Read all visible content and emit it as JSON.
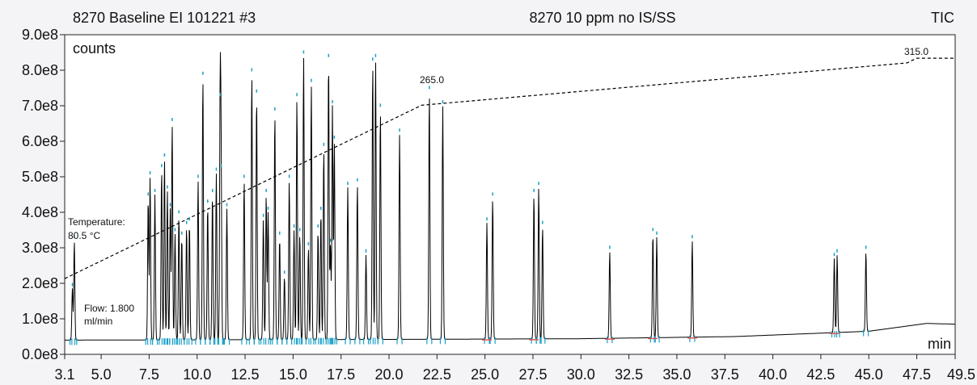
{
  "header": {
    "left_title": "8270 Baseline EI 101221 #3",
    "center_title": "8270 10 ppm no IS/SS",
    "right_title": "TIC"
  },
  "chart_data": {
    "type": "line",
    "ylabel": "counts",
    "xlabel": "min",
    "xlim": [
      3.1,
      49.5
    ],
    "ylim": [
      0,
      900000000
    ],
    "x_tick_labels": [
      "3.1",
      "5.0",
      "7.5",
      "10.0",
      "12.5",
      "15.0",
      "17.5",
      "20.0",
      "22.5",
      "25.0",
      "27.5",
      "30.0",
      "32.5",
      "35.0",
      "37.5",
      "40.0",
      "42.5",
      "45.0",
      "47.5",
      "49.5"
    ],
    "y_tick_labels": [
      "0.0e8",
      "1.0e8",
      "2.0e8",
      "3.0e8",
      "4.0e8",
      "5.0e8",
      "6.0e8",
      "7.0e8",
      "8.0e8",
      "9.0e8"
    ],
    "grid": false,
    "annotations": {
      "temperature_label": "Temperature:",
      "temperature_value": "80.5 °C",
      "flow_label": "Flow: 1.800",
      "flow_unit": "ml/min",
      "temp_mark_1": "265.0",
      "temp_mark_2": "315.0"
    },
    "colors": {
      "trace": "#000000",
      "peak_marker": "#1aa0c8",
      "temperature_program": "#000000",
      "baseline_marker": "#e05050"
    },
    "baseline": [
      [
        3.1,
        40000000
      ],
      [
        20,
        42000000
      ],
      [
        30,
        44000000
      ],
      [
        38,
        50000000
      ],
      [
        45,
        65000000
      ],
      [
        48,
        87000000
      ],
      [
        49.5,
        85000000
      ]
    ],
    "peaks": [
      {
        "rt": 3.5,
        "height": 185000000
      },
      {
        "rt": 3.6,
        "height": 320000000
      },
      {
        "rt": 7.45,
        "height": 440000000
      },
      {
        "rt": 7.55,
        "height": 500000000
      },
      {
        "rt": 7.8,
        "height": 450000000
      },
      {
        "rt": 8.15,
        "height": 520000000
      },
      {
        "rt": 8.3,
        "height": 550000000
      },
      {
        "rt": 8.45,
        "height": 460000000
      },
      {
        "rt": 8.6,
        "height": 410000000
      },
      {
        "rt": 8.7,
        "height": 650000000
      },
      {
        "rt": 8.85,
        "height": 340000000
      },
      {
        "rt": 9.05,
        "height": 390000000
      },
      {
        "rt": 9.2,
        "height": 330000000
      },
      {
        "rt": 9.45,
        "height": 360000000
      },
      {
        "rt": 9.6,
        "height": 370000000
      },
      {
        "rt": 10.05,
        "height": 490000000
      },
      {
        "rt": 10.3,
        "height": 780000000
      },
      {
        "rt": 10.55,
        "height": 420000000
      },
      {
        "rt": 10.8,
        "height": 450000000
      },
      {
        "rt": 11.0,
        "height": 510000000
      },
      {
        "rt": 11.2,
        "height": 720000000
      },
      {
        "rt": 11.25,
        "height": 520000000
      },
      {
        "rt": 11.55,
        "height": 410000000
      },
      {
        "rt": 12.45,
        "height": 490000000
      },
      {
        "rt": 12.85,
        "height": 790000000
      },
      {
        "rt": 13.1,
        "height": 730000000
      },
      {
        "rt": 13.45,
        "height": 380000000
      },
      {
        "rt": 13.6,
        "height": 450000000
      },
      {
        "rt": 13.7,
        "height": 400000000
      },
      {
        "rt": 14.05,
        "height": 680000000
      },
      {
        "rt": 14.3,
        "height": 330000000
      },
      {
        "rt": 14.55,
        "height": 220000000
      },
      {
        "rt": 14.8,
        "height": 490000000
      },
      {
        "rt": 15.05,
        "height": 350000000
      },
      {
        "rt": 15.2,
        "height": 720000000
      },
      {
        "rt": 15.35,
        "height": 340000000
      },
      {
        "rt": 15.55,
        "height": 840000000
      },
      {
        "rt": 15.8,
        "height": 300000000
      },
      {
        "rt": 15.95,
        "height": 760000000
      },
      {
        "rt": 16.3,
        "height": 350000000
      },
      {
        "rt": 16.45,
        "height": 400000000
      },
      {
        "rt": 16.6,
        "height": 580000000
      },
      {
        "rt": 16.85,
        "height": 830000000
      },
      {
        "rt": 16.95,
        "height": 310000000
      },
      {
        "rt": 17.05,
        "height": 700000000
      },
      {
        "rt": 17.15,
        "height": 600000000
      },
      {
        "rt": 17.85,
        "height": 470000000
      },
      {
        "rt": 18.35,
        "height": 480000000
      },
      {
        "rt": 18.8,
        "height": 280000000
      },
      {
        "rt": 19.15,
        "height": 820000000
      },
      {
        "rt": 19.3,
        "height": 830000000
      },
      {
        "rt": 19.55,
        "height": 690000000
      },
      {
        "rt": 20.55,
        "height": 620000000
      },
      {
        "rt": 22.1,
        "height": 740000000
      },
      {
        "rt": 22.8,
        "height": 700000000
      },
      {
        "rt": 25.1,
        "height": 370000000
      },
      {
        "rt": 25.4,
        "height": 440000000
      },
      {
        "rt": 27.55,
        "height": 450000000
      },
      {
        "rt": 27.8,
        "height": 470000000
      },
      {
        "rt": 28.0,
        "height": 360000000
      },
      {
        "rt": 31.5,
        "height": 290000000
      },
      {
        "rt": 33.75,
        "height": 340000000
      },
      {
        "rt": 33.95,
        "height": 330000000
      },
      {
        "rt": 35.8,
        "height": 320000000
      },
      {
        "rt": 43.2,
        "height": 270000000
      },
      {
        "rt": 43.35,
        "height": 280000000
      },
      {
        "rt": 44.85,
        "height": 290000000
      }
    ],
    "temperature_program": [
      [
        3.1,
        80.5
      ],
      [
        21.7,
        265.0
      ],
      [
        47.0,
        310.0
      ],
      [
        47.5,
        315.0
      ],
      [
        49.5,
        315.0
      ]
    ]
  }
}
